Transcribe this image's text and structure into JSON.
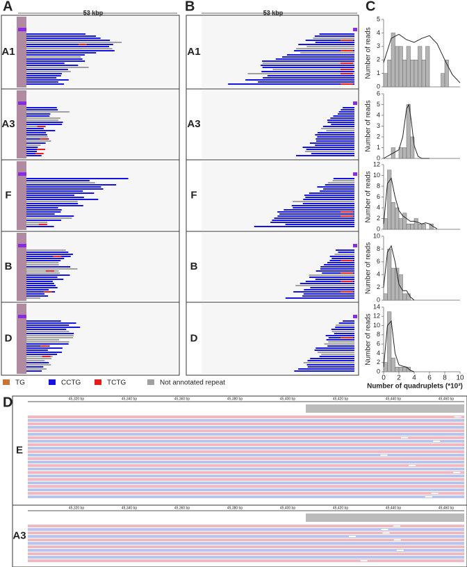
{
  "panel_labels": [
    "A",
    "B",
    "C",
    "D"
  ],
  "scale_label": "53 kbp",
  "panel_a": {
    "samples": [
      "A1",
      "A3",
      "F",
      "B",
      "D"
    ]
  },
  "panel_b": {
    "samples": [
      "A1",
      "A3",
      "F",
      "B",
      "D"
    ]
  },
  "legend": [
    {
      "name": "TG",
      "color": "#c87533"
    },
    {
      "name": "CCTG",
      "color": "#1414e0"
    },
    {
      "name": "TCTG",
      "color": "#e51c1c"
    },
    {
      "name": "Not annotated repeat",
      "color": "#a0a0a0"
    }
  ],
  "panel_d": {
    "samples": [
      "E",
      "A3"
    ],
    "ruler_e": [
      "45,320 bp",
      "45,340 bp",
      "45,360 bp",
      "45,380 bp",
      "45,400 bp",
      "45,420 bp",
      "45,440 bp",
      "45,460 bp"
    ],
    "ruler_a3": [
      "45,320 bp",
      "45,340 bp",
      "45,360 bp",
      "45,380 bp",
      "45,400 bp",
      "45,420 bp",
      "45,440 bp",
      "45,460 bp"
    ]
  },
  "chart_data": [
    {
      "type": "histogram",
      "y_label": "Number of reads",
      "bins": [
        0,
        0.5,
        1,
        1.5,
        2,
        2.5,
        3,
        3.5,
        4,
        4.5,
        5,
        5.5,
        6,
        6.5,
        7,
        7.5,
        8,
        8.5,
        9,
        9.5,
        10
      ],
      "values": [
        1,
        2,
        4,
        3,
        3,
        2,
        3,
        2,
        2,
        3,
        2,
        3,
        0,
        0,
        0,
        1,
        2,
        0,
        0,
        0
      ],
      "xlim": [
        0,
        10
      ],
      "ylim": [
        0,
        5
      ],
      "yticks": [
        0,
        1,
        2,
        3,
        4,
        5
      ],
      "color": "#b4b4b4",
      "fit": {
        "x": [
          0,
          1,
          2,
          3,
          4,
          5,
          6,
          7,
          8,
          9,
          10
        ],
        "y": [
          1.8,
          3.6,
          3.9,
          3.5,
          3.3,
          3.6,
          3.8,
          3.2,
          2.0,
          0.9,
          0.3
        ]
      }
    },
    {
      "type": "histogram",
      "y_label": "Number of reads",
      "bins": [
        0,
        0.5,
        1,
        1.5,
        2,
        2.5,
        3,
        3.5,
        4,
        4.5,
        5,
        5.5,
        6,
        6.5,
        7,
        7.5,
        8,
        8.5,
        9,
        9.5,
        10
      ],
      "values": [
        0,
        0,
        1,
        0,
        1,
        1,
        5,
        2,
        0,
        0,
        0,
        0,
        0,
        0,
        0,
        0,
        0,
        0,
        0,
        0
      ],
      "xlim": [
        0,
        10
      ],
      "ylim": [
        0,
        6
      ],
      "yticks": [
        0,
        1,
        2,
        3,
        4,
        5,
        6
      ],
      "color": "#b4b4b4",
      "fit": {
        "x": [
          0,
          1,
          1.5,
          2,
          2.5,
          3,
          3.3,
          3.6,
          4,
          4.5,
          5,
          6
        ],
        "y": [
          0,
          0.4,
          0.6,
          0.8,
          2.0,
          4.6,
          5.0,
          3.6,
          1.2,
          0.2,
          0,
          0
        ]
      }
    },
    {
      "type": "histogram",
      "y_label": "Number of reads",
      "bins": [
        0,
        0.5,
        1,
        1.5,
        2,
        2.5,
        3,
        3.5,
        4,
        4.5,
        5,
        5.5,
        6,
        6.5,
        7,
        7.5,
        8,
        8.5,
        9,
        9.5,
        10
      ],
      "values": [
        2,
        11,
        5,
        4,
        2,
        3,
        1,
        1,
        2,
        1,
        1,
        0,
        1,
        0,
        0,
        0,
        0,
        0,
        0,
        0
      ],
      "xlim": [
        0,
        10
      ],
      "ylim": [
        0,
        12
      ],
      "yticks": [
        0,
        2,
        4,
        6,
        8,
        10,
        12
      ],
      "color": "#b4b4b4",
      "fit": {
        "x": [
          0,
          0.5,
          1,
          1.5,
          2,
          2.5,
          3,
          3.5,
          4,
          4.5,
          5,
          5.5,
          6,
          6.5,
          7
        ],
        "y": [
          1,
          8.5,
          9.5,
          6,
          3.5,
          2.5,
          2,
          1.5,
          1.5,
          1.3,
          1,
          1.2,
          1,
          0.5,
          0.1
        ]
      }
    },
    {
      "type": "histogram",
      "y_label": "Number of reads",
      "bins": [
        0,
        0.5,
        1,
        1.5,
        2,
        2.5,
        3,
        3.5,
        4,
        4.5,
        5,
        5.5,
        6,
        6.5,
        7,
        7.5,
        8,
        8.5,
        9,
        9.5,
        10
      ],
      "values": [
        1,
        8,
        5,
        5,
        4,
        1,
        1,
        0,
        0,
        0,
        0,
        0,
        0,
        0,
        0,
        0,
        0,
        0,
        0,
        0
      ],
      "xlim": [
        0,
        10
      ],
      "ylim": [
        0,
        10
      ],
      "yticks": [
        0,
        2,
        4,
        6,
        8,
        10
      ],
      "color": "#b4b4b4",
      "fit": {
        "x": [
          0,
          0.5,
          1,
          1.5,
          2,
          2.5,
          3,
          3.5,
          4
        ],
        "y": [
          2,
          7.5,
          8.5,
          6,
          2.5,
          1.5,
          1.5,
          0.5,
          0
        ]
      }
    },
    {
      "type": "histogram",
      "y_label": "Number of reads",
      "x_label": "Number of quadruplets (*10³)",
      "bins": [
        0,
        0.5,
        1,
        1.5,
        2,
        2.5,
        3,
        3.5,
        4,
        4.5,
        5,
        5.5,
        6,
        6.5,
        7,
        7.5,
        8,
        8.5,
        9,
        9.5,
        10
      ],
      "values": [
        2,
        13,
        3,
        1,
        1,
        1,
        1,
        0,
        0,
        0,
        0,
        0,
        0,
        0,
        0,
        0,
        0,
        0,
        0,
        0
      ],
      "xlim": [
        0,
        10
      ],
      "ylim": [
        0,
        14
      ],
      "yticks": [
        0,
        2,
        4,
        6,
        8,
        10,
        12,
        14
      ],
      "xticks": [
        0,
        2,
        4,
        6,
        8,
        10
      ],
      "color": "#b4b4b4",
      "fit": {
        "x": [
          0,
          0.5,
          1,
          1.5,
          2,
          2.5,
          3,
          3.5,
          4
        ],
        "y": [
          1,
          10,
          11,
          4,
          1.5,
          1.2,
          1,
          0.3,
          0
        ]
      }
    }
  ]
}
